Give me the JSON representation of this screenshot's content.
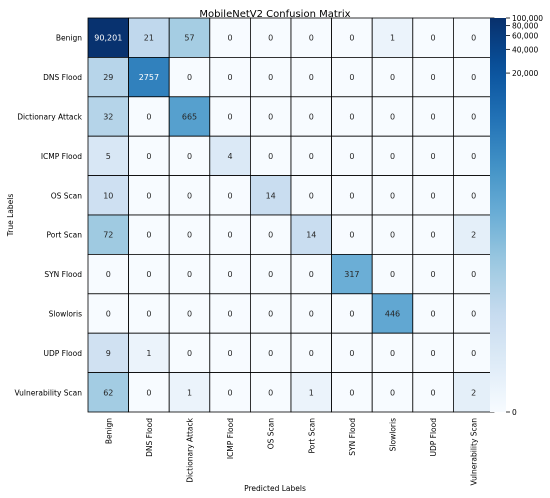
{
  "chart_data": {
    "type": "heatmap",
    "title": "MobileNetV2 Confusion Matrix",
    "xlabel": "Predicted Labels",
    "ylabel": "True Labels",
    "x_categories": [
      "Benign",
      "DNS Flood",
      "Dictionary Attack",
      "ICMP Flood",
      "OS Scan",
      "Port Scan",
      "SYN Flood",
      "Slowloris",
      "UDP Flood",
      "Vulnerability Scan"
    ],
    "y_categories": [
      "Benign",
      "DNS Flood",
      "Dictionary Attack",
      "ICMP Flood",
      "OS Scan",
      "Port Scan",
      "SYN Flood",
      "Slowloris",
      "UDP Flood",
      "Vulnerability Scan"
    ],
    "values": [
      [
        90201,
        21,
        57,
        0,
        0,
        0,
        0,
        1,
        0,
        0
      ],
      [
        29,
        2757,
        0,
        0,
        0,
        0,
        0,
        0,
        0,
        0
      ],
      [
        32,
        0,
        665,
        0,
        0,
        0,
        0,
        0,
        0,
        0
      ],
      [
        5,
        0,
        0,
        4,
        0,
        0,
        0,
        0,
        0,
        0
      ],
      [
        10,
        0,
        0,
        0,
        14,
        0,
        0,
        0,
        0,
        0
      ],
      [
        72,
        0,
        0,
        0,
        0,
        14,
        0,
        0,
        0,
        2
      ],
      [
        0,
        0,
        0,
        0,
        0,
        0,
        317,
        0,
        0,
        0
      ],
      [
        0,
        0,
        0,
        0,
        0,
        0,
        0,
        446,
        0,
        0
      ],
      [
        9,
        1,
        0,
        0,
        0,
        0,
        0,
        0,
        0,
        0
      ],
      [
        62,
        0,
        1,
        0,
        0,
        1,
        0,
        0,
        0,
        2
      ]
    ],
    "cell_labels": [
      [
        "90,201",
        "21",
        "57",
        "0",
        "0",
        "0",
        "0",
        "1",
        "0",
        "0"
      ],
      [
        "29",
        "2757",
        "0",
        "0",
        "0",
        "0",
        "0",
        "0",
        "0",
        "0"
      ],
      [
        "32",
        "0",
        "665",
        "0",
        "0",
        "0",
        "0",
        "0",
        "0",
        "0"
      ],
      [
        "5",
        "0",
        "0",
        "4",
        "0",
        "0",
        "0",
        "0",
        "0",
        "0"
      ],
      [
        "10",
        "0",
        "0",
        "0",
        "14",
        "0",
        "0",
        "0",
        "0",
        "0"
      ],
      [
        "72",
        "0",
        "0",
        "0",
        "0",
        "14",
        "0",
        "0",
        "0",
        "2"
      ],
      [
        "0",
        "0",
        "0",
        "0",
        "0",
        "0",
        "317",
        "0",
        "0",
        "0"
      ],
      [
        "0",
        "0",
        "0",
        "0",
        "0",
        "0",
        "0",
        "446",
        "0",
        "0"
      ],
      [
        "9",
        "1",
        "0",
        "0",
        "0",
        "0",
        "0",
        "0",
        "0",
        "0"
      ],
      [
        "62",
        "0",
        "1",
        "0",
        "0",
        "1",
        "0",
        "0",
        "0",
        "2"
      ]
    ],
    "colorbar": {
      "scale": "symlog",
      "range": [
        0,
        100000
      ],
      "ticks": [
        0,
        20000,
        40000,
        60000,
        80000,
        100000
      ],
      "tick_labels": [
        "0",
        "20,000",
        "40,000",
        "60,000",
        "80,000",
        "100,000"
      ],
      "colormap": "Blues",
      "colors": [
        "#f7fbff",
        "#deebf7",
        "#c6dbef",
        "#9ecae1",
        "#6baed6",
        "#4292c6",
        "#2171b5",
        "#08519c",
        "#08306b"
      ]
    },
    "grid": true
  }
}
